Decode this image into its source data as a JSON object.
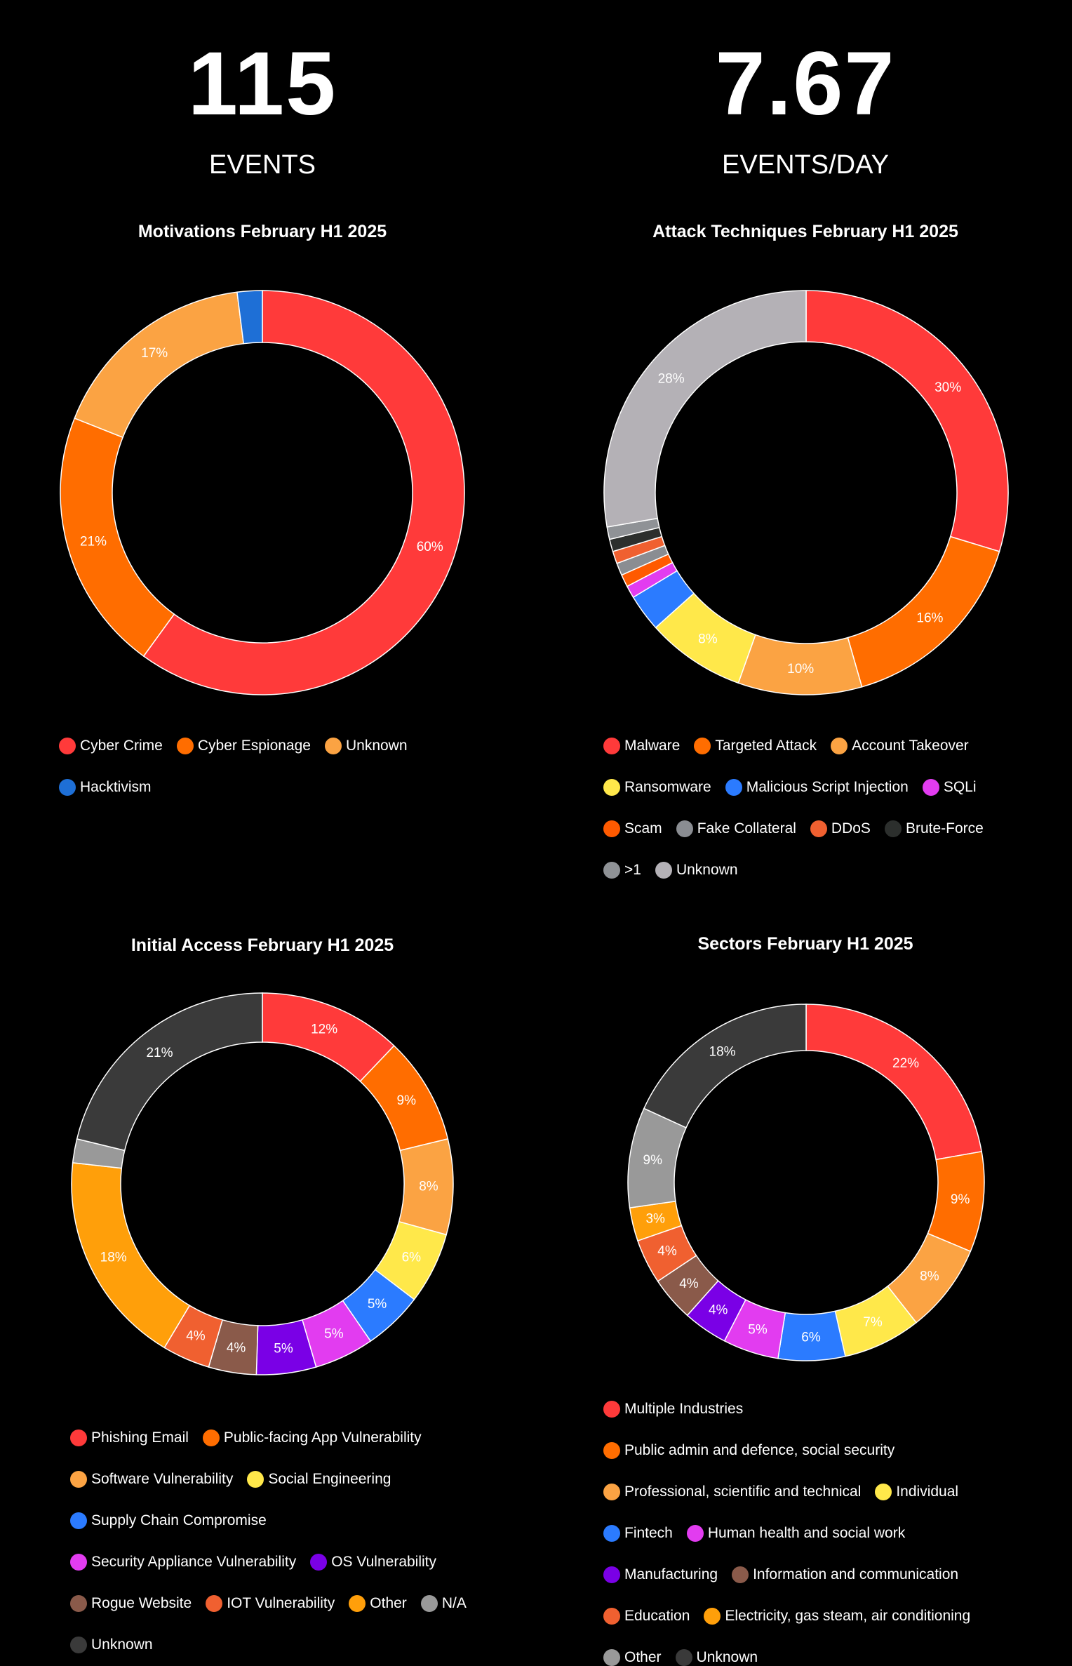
{
  "stats": [
    {
      "value": "115",
      "label": "EVENTS"
    },
    {
      "value": "7.67",
      "label": "EVENTS/DAY"
    }
  ],
  "chart_data": [
    {
      "type": "pie",
      "title": "Motivations February H1 2025",
      "legend": "bottom-left",
      "series": [
        {
          "name": "Cyber Crime",
          "value": 60,
          "label": "60%",
          "color": "#ff3a3a"
        },
        {
          "name": "Cyber Espionage",
          "value": 21,
          "label": "21%",
          "color": "#ff6d00"
        },
        {
          "name": "Unknown",
          "value": 17,
          "label": "17%",
          "color": "#fba343"
        },
        {
          "name": "Hacktivism",
          "value": 2,
          "label": "",
          "color": "#1e6fd6"
        }
      ]
    },
    {
      "type": "pie",
      "title": "Attack Techniques February H1 2025",
      "legend": "bottom-left",
      "series": [
        {
          "name": "Malware",
          "value": 30,
          "label": "30%",
          "color": "#ff3a3a"
        },
        {
          "name": "Targeted Attack",
          "value": 16,
          "label": "16%",
          "color": "#ff6d00"
        },
        {
          "name": "Account Takeover",
          "value": 10,
          "label": "10%",
          "color": "#fba343"
        },
        {
          "name": "Ransomware",
          "value": 8,
          "label": "8%",
          "color": "#ffe84a"
        },
        {
          "name": "Malicious Script Injection",
          "value": 3,
          "label": "",
          "color": "#2b7bff"
        },
        {
          "name": "SQLi",
          "value": 1,
          "label": "",
          "color": "#e23cf0"
        },
        {
          "name": "Scam",
          "value": 1,
          "label": "",
          "color": "#ff5a00"
        },
        {
          "name": "Fake Collateral",
          "value": 1,
          "label": "",
          "color": "#8a8d92"
        },
        {
          "name": "DDoS",
          "value": 1,
          "label": "",
          "color": "#f06030"
        },
        {
          "name": "Brute-Force",
          "value": 1,
          "label": "",
          "color": "#2c2f2d"
        },
        {
          "name": ">1",
          "value": 1,
          "label": "",
          "color": "#8f9296"
        },
        {
          "name": "Unknown",
          "value": 28,
          "label": "28%",
          "color": "#b4b1b6"
        }
      ]
    },
    {
      "type": "pie",
      "title": "Initial Access February H1 2025",
      "legend": "bottom-left",
      "series": [
        {
          "name": "Phishing Email",
          "value": 12,
          "label": "12%",
          "color": "#ff3a3a"
        },
        {
          "name": "Public-facing App Vulnerability",
          "value": 9,
          "label": "9%",
          "color": "#ff6d00"
        },
        {
          "name": "Software Vulnerability",
          "value": 8,
          "label": "8%",
          "color": "#fba343"
        },
        {
          "name": "Social Engineering",
          "value": 6,
          "label": "6%",
          "color": "#ffe84a"
        },
        {
          "name": "Supply Chain Compromise",
          "value": 5,
          "label": "5%",
          "color": "#2b7bff"
        },
        {
          "name": "Security Appliance Vulnerability",
          "value": 5,
          "label": "5%",
          "color": "#e23cf0"
        },
        {
          "name": "OS Vulnerability",
          "value": 5,
          "label": "5%",
          "color": "#7a00e6"
        },
        {
          "name": "Rogue Website",
          "value": 4,
          "label": "4%",
          "color": "#8a5a4a"
        },
        {
          "name": "IOT Vulnerability",
          "value": 4,
          "label": "4%",
          "color": "#f06030"
        },
        {
          "name": "Other",
          "value": 18,
          "label": "18%",
          "color": "#ff9f0a"
        },
        {
          "name": "N/A",
          "value": 2,
          "label": "",
          "color": "#999999"
        },
        {
          "name": "Unknown",
          "value": 21,
          "label": "21%",
          "color": "#3a3a3a"
        }
      ]
    },
    {
      "type": "pie",
      "title": "Sectors February H1 2025",
      "legend": "bottom-left",
      "series": [
        {
          "name": "Multiple Industries",
          "value": 22,
          "label": "22%",
          "color": "#ff3a3a"
        },
        {
          "name": "Public admin and defence, social security",
          "value": 9,
          "label": "9%",
          "color": "#ff6d00"
        },
        {
          "name": "Professional, scientific and technical",
          "value": 8,
          "label": "8%",
          "color": "#fba343"
        },
        {
          "name": "Individual",
          "value": 7,
          "label": "7%",
          "color": "#ffe84a"
        },
        {
          "name": "Fintech",
          "value": 6,
          "label": "6%",
          "color": "#2b7bff"
        },
        {
          "name": "Human health and social work",
          "value": 5,
          "label": "5%",
          "color": "#e23cf0"
        },
        {
          "name": "Manufacturing",
          "value": 4,
          "label": "4%",
          "color": "#7a00e6"
        },
        {
          "name": "Information and communication",
          "value": 4,
          "label": "4%",
          "color": "#8a5a4a"
        },
        {
          "name": "Education",
          "value": 4,
          "label": "4%",
          "color": "#f06030"
        },
        {
          "name": "Electricity, gas steam, air conditioning",
          "value": 3,
          "label": "3%",
          "color": "#ff9f0a"
        },
        {
          "name": "Other",
          "value": 9,
          "label": "9%",
          "color": "#999999"
        },
        {
          "name": "Unknown",
          "value": 18,
          "label": "18%",
          "color": "#3a3a3a"
        }
      ]
    }
  ]
}
